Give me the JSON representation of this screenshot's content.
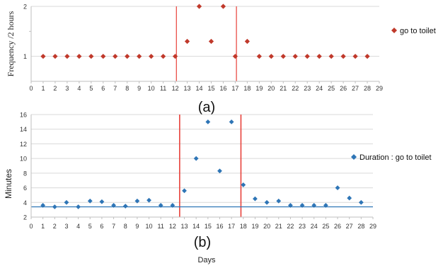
{
  "colors": {
    "series_a": "#c0392b",
    "series_b": "#2e75b6",
    "vline": "#e8413a",
    "hline": "#2e75b6",
    "grid": "#d9d9d9",
    "axis": "#bfbfbf"
  },
  "chart_data": [
    {
      "type": "scatter",
      "panel_label": "(a)",
      "ylabel": "Frequency  /2 hours",
      "xlabel": "",
      "xlim": [
        0,
        29
      ],
      "ylim": [
        0.5,
        2
      ],
      "x_ticks": [
        "0",
        "1",
        "2",
        "3",
        "4",
        "5",
        "6",
        "7",
        "8",
        "9",
        "10",
        "11",
        "12",
        "13",
        "14",
        "15",
        "16",
        "17",
        "18",
        "19",
        "20",
        "21",
        "22",
        "23",
        "24",
        "25",
        "26",
        "27",
        "28",
        "29"
      ],
      "y_ticks": [
        "1",
        "2"
      ],
      "grid": true,
      "legend_position": "right",
      "vertical_lines": [
        12.1,
        17.1
      ],
      "series": [
        {
          "name": "go to toilet",
          "marker": "diamond",
          "x": [
            1,
            2,
            3,
            4,
            5,
            6,
            7,
            8,
            9,
            10,
            11,
            12,
            13,
            14,
            15,
            16,
            17,
            18,
            19,
            20,
            21,
            22,
            23,
            24,
            25,
            26,
            27,
            28
          ],
          "y": [
            1,
            1,
            1,
            1,
            1,
            1,
            1,
            1,
            1,
            1,
            1,
            1,
            1.3,
            2,
            1.3,
            2,
            1,
            1.3,
            1,
            1,
            1,
            1,
            1,
            1,
            1,
            1,
            1,
            1
          ]
        }
      ]
    },
    {
      "type": "scatter",
      "panel_label": "(b)",
      "ylabel": "Minutes",
      "xlabel": "Days",
      "xlim": [
        0,
        29
      ],
      "ylim": [
        2,
        16
      ],
      "x_ticks": [
        "0",
        "1",
        "2",
        "3",
        "4",
        "5",
        "6",
        "7",
        "8",
        "9",
        "10",
        "11",
        "12",
        "13",
        "14",
        "15",
        "16",
        "17",
        "18",
        "19",
        "20",
        "21",
        "22",
        "23",
        "24",
        "25",
        "26",
        "27",
        "28",
        "29"
      ],
      "y_ticks": [
        "2",
        "4",
        "6",
        "8",
        "10",
        "12",
        "14",
        "16"
      ],
      "grid": true,
      "legend_position": "right",
      "vertical_lines": [
        12.6,
        17.8
      ],
      "horizontal_line": 3.4,
      "series": [
        {
          "name": "Duration : go to toilet",
          "marker": "diamond",
          "x": [
            1,
            2,
            3,
            4,
            5,
            6,
            7,
            8,
            9,
            10,
            11,
            12,
            13,
            14,
            15,
            16,
            17,
            18,
            19,
            20,
            21,
            22,
            23,
            24,
            25,
            26,
            27,
            28
          ],
          "y": [
            3.6,
            3.4,
            4.0,
            3.4,
            4.2,
            4.1,
            3.6,
            3.5,
            4.2,
            4.3,
            3.6,
            3.6,
            5.6,
            10.0,
            15.0,
            8.3,
            15.0,
            6.4,
            4.5,
            4.0,
            4.2,
            3.6,
            3.6,
            3.6,
            3.6,
            6.0,
            4.6,
            4.0
          ]
        }
      ]
    }
  ]
}
